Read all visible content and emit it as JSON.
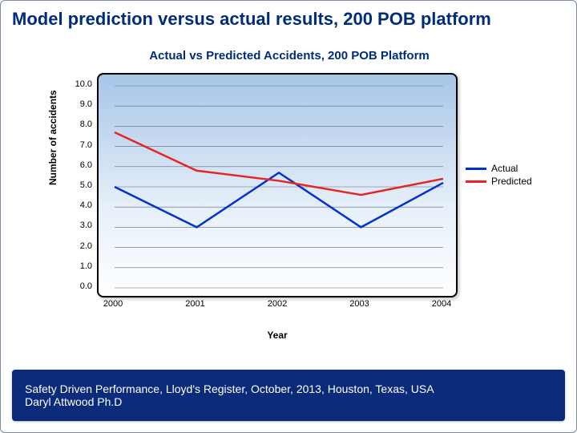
{
  "slide": {
    "title": "Model prediction versus actual results, 200 POB platform",
    "title_color": "#002d7a",
    "title_fontsize": 22
  },
  "chart": {
    "type": "line",
    "title": "Actual vs Predicted Accidents, 200 POB Platform",
    "title_color": "#002d7a",
    "title_fontsize": 15,
    "x_categories": [
      "2000",
      "2001",
      "2002",
      "2003",
      "2004"
    ],
    "xlabel": "Year",
    "ylabel": "Number of accidents",
    "ylim": [
      0,
      10
    ],
    "ytick_step": 1,
    "y_ticks": [
      "0.0",
      "1.0",
      "2.0",
      "3.0",
      "4.0",
      "5.0",
      "6.0",
      "7.0",
      "8.0",
      "9.0",
      "10.0"
    ],
    "grid_color": "#5a6a7a",
    "plot_bg_gradient": [
      "#a7c6e8",
      "#ffffff"
    ],
    "plot_border_color": "#000000",
    "plot_border_radius": 8,
    "plot_border_width": 2,
    "line_width": 2.5,
    "series": [
      {
        "name": "Actual",
        "color": "#0033cc",
        "values": [
          5.0,
          3.0,
          5.7,
          3.0,
          5.2
        ]
      },
      {
        "name": "Predicted",
        "color": "#e52620",
        "values": [
          7.7,
          5.8,
          5.3,
          4.6,
          5.4
        ]
      }
    ],
    "legend_position": "right",
    "label_fontsize": 12,
    "tick_fontsize": 11
  },
  "footer": {
    "line1": "Safety Driven Performance, Lloyd's Register, October, 2013, Houston, Texas, USA",
    "line2": "Daryl Attwood Ph.D",
    "background": "#0a2a7a",
    "text_color": "#ffffff",
    "fontsize": 14
  }
}
